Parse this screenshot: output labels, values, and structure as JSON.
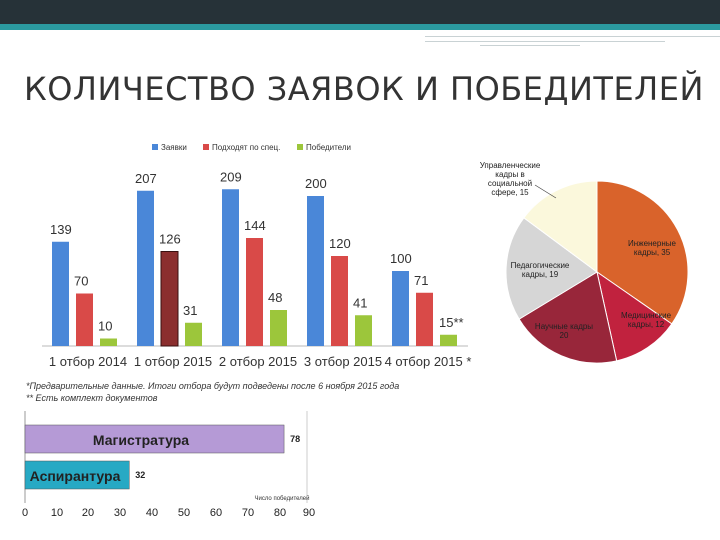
{
  "title": "КОЛИЧЕСТВО ЗАЯВОК И ПОБЕДИТЕЛЕЙ",
  "colors": {
    "blue": "#4a87d8",
    "red": "#d94a48",
    "green": "#9cc63b",
    "highlight": "#8b2e2e"
  },
  "chart_data": [
    {
      "type": "bar",
      "categories": [
        "1 отбор 2014",
        "1 отбор 2015",
        "2 отбор 2015",
        "3 отбор 2015",
        "4 отбор 2015 *"
      ],
      "series": [
        {
          "name": "Заявки",
          "values": [
            139,
            207,
            209,
            200,
            100
          ]
        },
        {
          "name": "Подходят по спец.",
          "values": [
            70,
            126,
            144,
            120,
            71
          ]
        },
        {
          "name": "Победители",
          "values": [
            10,
            31,
            48,
            41,
            15
          ]
        }
      ],
      "value_labels": [
        [
          "139",
          "207",
          "209",
          "200",
          "100"
        ],
        [
          "70",
          "126",
          "144",
          "120",
          "71"
        ],
        [
          "10",
          "31",
          "48",
          "41",
          "15**"
        ]
      ],
      "notes": [
        "*Предварительные данные. Итоги отбора будут подведены после 6 ноября 2015 года",
        "** Есть комплект документов"
      ],
      "legend": "top"
    },
    {
      "type": "pie",
      "slices": [
        {
          "name": "Инженерные кадры, 35",
          "value": 35,
          "color": "#d9632b"
        },
        {
          "name": "Медицинские кадры, 12",
          "value": 12,
          "color": "#c1223e"
        },
        {
          "name": "Научные кадры 20",
          "value": 20,
          "color": "#98263a"
        },
        {
          "name": "Педагогические кадры, 19",
          "value": 19,
          "color": "#d6d6d6"
        },
        {
          "name": "Управленческие кадры в социальной сфере, 15",
          "value": 15,
          "color": "#fbf8dc"
        }
      ]
    },
    {
      "type": "bar",
      "orientation": "horizontal",
      "categories": [
        "Магистратура",
        "Аспирантура"
      ],
      "values": [
        78,
        32
      ],
      "colors": [
        "#b59ad6",
        "#27a9c4"
      ],
      "xticks": [
        "0",
        "10",
        "20",
        "30",
        "40",
        "50",
        "60",
        "70",
        "80",
        "90"
      ],
      "xlim": [
        0,
        90
      ],
      "xlabel": "Число победителей"
    }
  ]
}
